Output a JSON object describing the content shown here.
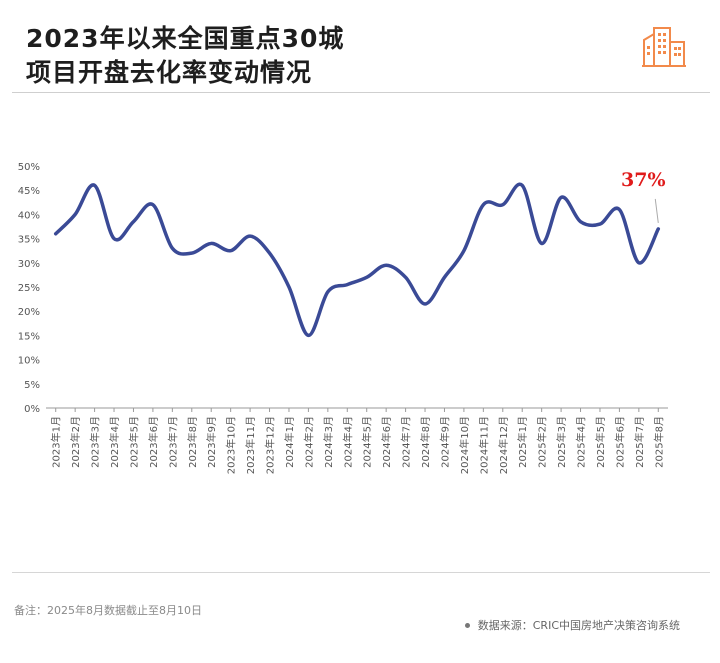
{
  "header": {
    "title_line1": "2023年以来全国重点30城",
    "title_line2": "项目开盘去化率变动情况",
    "logo_icon": "buildings-icon",
    "accent_color": "#f28a4b"
  },
  "footer": {
    "note": "备注：2025年8月数据截止至8月10日",
    "source": "数据来源：CRIC中国房地产决策咨询系统"
  },
  "chart_data": {
    "type": "line",
    "title": "2023年以来全国重点30城项目开盘去化率变动情况",
    "xlabel": "",
    "ylabel": "",
    "ylim": [
      0,
      50
    ],
    "yticks": [
      "0%",
      "5%",
      "10%",
      "15%",
      "20%",
      "25%",
      "30%",
      "35%",
      "40%",
      "45%",
      "50%"
    ],
    "grid": false,
    "legend": "none",
    "line_color": "#3a4a96",
    "categories": [
      "2023年1月",
      "2023年2月",
      "2023年3月",
      "2023年4月",
      "2023年5月",
      "2023年6月",
      "2023年7月",
      "2023年8月",
      "2023年9月",
      "2023年10月",
      "2023年11月",
      "2023年12月",
      "2024年1月",
      "2024年2月",
      "2024年3月",
      "2024年4月",
      "2024年5月",
      "2024年6月",
      "2024年7月",
      "2024年8月",
      "2024年9月",
      "2024年10月",
      "2024年11月",
      "2024年12月",
      "2025年1月",
      "2025年2月",
      "2025年3月",
      "2025年4月",
      "2025年5月",
      "2025年6月",
      "2025年7月",
      "2025年8月"
    ],
    "values": [
      36,
      40,
      46,
      35,
      38.5,
      42,
      33,
      32,
      34,
      32.5,
      35.5,
      32,
      25,
      15,
      24,
      25.5,
      27,
      29.5,
      27,
      21.5,
      27,
      32.5,
      42,
      42,
      46,
      34,
      43.5,
      38.5,
      38,
      41,
      30,
      37
    ],
    "annotations": [
      {
        "category": "2025年8月",
        "text": "37%",
        "color": "#e01b1b"
      }
    ]
  }
}
